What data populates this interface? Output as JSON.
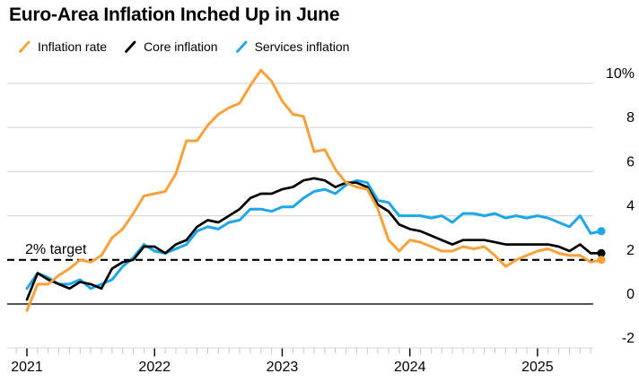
{
  "header": {
    "title": "Euro-Area Inflation Inched Up in June"
  },
  "legend": {
    "items": [
      {
        "label": "Inflation rate",
        "color": "#F8A13B"
      },
      {
        "label": "Core inflation",
        "color": "#000000"
      },
      {
        "label": "Services inflation",
        "color": "#1EA7E8"
      }
    ]
  },
  "annotation": {
    "label": "2% target"
  },
  "chart_data": {
    "type": "line",
    "title": "Euro-Area Inflation Inched Up in June",
    "unit": "%",
    "x_frequency": "monthly",
    "x_start": "2020-12",
    "x_end": "2025-06",
    "x_tick_labels": [
      "2021",
      "2022",
      "2023",
      "2024",
      "2025"
    ],
    "y_tick_values": [
      10,
      8,
      6,
      4,
      2,
      0,
      -2
    ],
    "y_tick_labels": [
      "10%",
      "8",
      "6",
      "4",
      "2",
      "0",
      "-2"
    ],
    "ylim": [
      -2,
      10.7
    ],
    "grid": "horizontal",
    "grid_values": [
      10,
      8,
      6,
      4
    ],
    "zero_line_value": 0,
    "target_line": {
      "value": 2,
      "label": "2% target",
      "style": "dashed"
    },
    "legend_position": "top",
    "end_dots": true,
    "series": [
      {
        "name": "Inflation rate",
        "color": "#F8A13B",
        "values": [
          -0.3,
          0.9,
          0.9,
          1.3,
          1.6,
          2.0,
          1.9,
          2.2,
          3.0,
          3.4,
          4.1,
          4.9,
          5.0,
          5.1,
          5.9,
          7.4,
          7.4,
          8.1,
          8.6,
          8.9,
          9.1,
          9.9,
          10.6,
          10.1,
          9.2,
          8.6,
          8.5,
          6.9,
          7.0,
          6.1,
          5.5,
          5.3,
          5.2,
          4.3,
          2.9,
          2.4,
          2.9,
          2.8,
          2.6,
          2.4,
          2.4,
          2.6,
          2.5,
          2.6,
          2.2,
          1.7,
          2.0,
          2.2,
          2.4,
          2.5,
          2.3,
          2.2,
          2.2,
          1.9,
          2.0
        ]
      },
      {
        "name": "Core inflation",
        "color": "#000000",
        "values": [
          0.2,
          1.4,
          1.1,
          0.9,
          0.7,
          1.0,
          0.9,
          0.7,
          1.6,
          1.9,
          2.0,
          2.6,
          2.6,
          2.3,
          2.7,
          2.9,
          3.5,
          3.8,
          3.7,
          4.0,
          4.3,
          4.8,
          5.0,
          5.0,
          5.2,
          5.3,
          5.6,
          5.7,
          5.6,
          5.3,
          5.5,
          5.5,
          5.3,
          4.5,
          4.2,
          3.6,
          3.4,
          3.3,
          3.1,
          2.9,
          2.7,
          2.9,
          2.9,
          2.9,
          2.8,
          2.7,
          2.7,
          2.7,
          2.7,
          2.7,
          2.6,
          2.4,
          2.7,
          2.3,
          2.3
        ]
      },
      {
        "name": "Services inflation",
        "color": "#1EA7E8",
        "values": [
          0.7,
          1.4,
          1.2,
          0.9,
          0.9,
          1.1,
          0.7,
          0.9,
          1.1,
          1.7,
          2.1,
          2.7,
          2.4,
          2.3,
          2.5,
          2.7,
          3.3,
          3.5,
          3.4,
          3.7,
          3.8,
          4.3,
          4.3,
          4.2,
          4.4,
          4.4,
          4.8,
          5.1,
          5.2,
          5.0,
          5.4,
          5.6,
          5.5,
          4.7,
          4.6,
          4.0,
          4.0,
          4.0,
          3.9,
          4.0,
          3.7,
          4.1,
          4.1,
          4.0,
          4.1,
          3.9,
          4.0,
          3.9,
          4.0,
          3.9,
          3.7,
          3.5,
          4.0,
          3.2,
          3.3
        ]
      }
    ]
  },
  "style_colors": {
    "gridline": "#D8D8D8",
    "axis_baseline": "#D8D8D8",
    "minor_tick": "#C4C4C4",
    "major_tick": "#000000",
    "zero_line": "#3C3C3C",
    "target_dash": "#000000",
    "label_text": "#000000"
  }
}
